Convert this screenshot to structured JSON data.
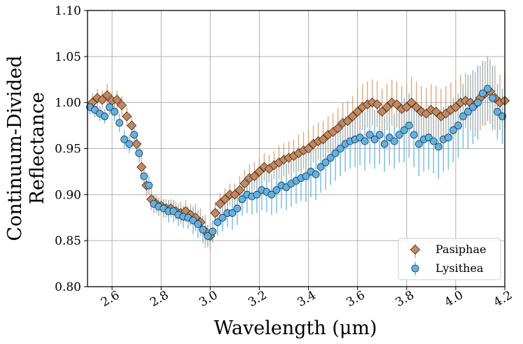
{
  "chart_data": {
    "type": "scatter",
    "title": "",
    "xlabel": "Wavelength (μm)",
    "ylabel": [
      "Continuum-Divided",
      "Reflectance"
    ],
    "xlim": [
      2.5,
      4.2
    ],
    "ylim": [
      0.8,
      1.1
    ],
    "x_ticks": [
      2.6,
      2.8,
      3.0,
      3.2,
      3.4,
      3.6,
      3.8,
      4.0,
      4.2
    ],
    "x_tick_labels": [
      "2.6",
      "2.8",
      "3.0",
      "3.2",
      "3.4",
      "3.6",
      "3.8",
      "4.0",
      "4.2"
    ],
    "y_ticks": [
      0.8,
      0.85,
      0.9,
      0.95,
      1.0,
      1.05,
      1.1
    ],
    "y_tick_labels": [
      "0.80",
      "0.85",
      "0.90",
      "0.95",
      "1.00",
      "1.05",
      "1.10"
    ],
    "grid": true,
    "legend_position": "bottom-right",
    "series": [
      {
        "name": "Pasiphae",
        "marker": "diamond",
        "color": "#c8875a",
        "edge_color": "#3a2a1e",
        "err_color": "#d9a06e",
        "x": [
          2.52,
          2.54,
          2.56,
          2.58,
          2.6,
          2.62,
          2.64,
          2.66,
          2.68,
          2.7,
          2.72,
          2.74,
          2.76,
          2.78,
          2.8,
          2.82,
          2.84,
          2.86,
          2.88,
          2.9,
          2.92,
          2.94,
          2.96,
          2.98,
          3.0,
          3.02,
          3.04,
          3.06,
          3.08,
          3.1,
          3.12,
          3.14,
          3.16,
          3.18,
          3.2,
          3.22,
          3.24,
          3.26,
          3.28,
          3.3,
          3.32,
          3.34,
          3.36,
          3.38,
          3.4,
          3.42,
          3.44,
          3.46,
          3.48,
          3.5,
          3.52,
          3.54,
          3.56,
          3.58,
          3.6,
          3.62,
          3.64,
          3.66,
          3.68,
          3.7,
          3.72,
          3.74,
          3.76,
          3.78,
          3.8,
          3.82,
          3.84,
          3.86,
          3.88,
          3.9,
          3.92,
          3.94,
          3.96,
          3.98,
          4.0,
          4.02,
          4.04,
          4.06,
          4.08,
          4.1,
          4.12,
          4.14,
          4.16,
          4.18,
          4.2
        ],
        "y": [
          1.0,
          1.005,
          1.003,
          1.008,
          1.002,
          1.003,
          0.997,
          0.985,
          0.975,
          0.955,
          0.93,
          0.91,
          0.895,
          0.89,
          0.888,
          0.885,
          0.885,
          0.882,
          0.88,
          0.882,
          0.878,
          0.875,
          0.87,
          0.86,
          0.855,
          0.88,
          0.89,
          0.895,
          0.9,
          0.9,
          0.905,
          0.912,
          0.918,
          0.92,
          0.925,
          0.93,
          0.928,
          0.932,
          0.935,
          0.938,
          0.94,
          0.942,
          0.945,
          0.948,
          0.95,
          0.955,
          0.958,
          0.96,
          0.965,
          0.968,
          0.972,
          0.978,
          0.98,
          0.985,
          0.99,
          0.995,
          0.998,
          1.0,
          0.998,
          0.99,
          0.995,
          1.0,
          0.998,
          0.993,
          0.995,
          1.0,
          0.995,
          0.99,
          0.988,
          0.992,
          0.99,
          0.985,
          0.988,
          0.992,
          0.995,
          1.0,
          1.002,
          1.0,
          0.998,
          1.005,
          1.01,
          1.012,
          1.005,
          1.0,
          1.002
        ],
        "err": [
          0.01,
          0.01,
          0.01,
          0.012,
          0.01,
          0.01,
          0.01,
          0.01,
          0.01,
          0.012,
          0.012,
          0.012,
          0.012,
          0.01,
          0.01,
          0.01,
          0.01,
          0.01,
          0.012,
          0.012,
          0.012,
          0.015,
          0.015,
          0.018,
          0.015,
          0.012,
          0.012,
          0.012,
          0.012,
          0.012,
          0.015,
          0.015,
          0.015,
          0.015,
          0.015,
          0.015,
          0.015,
          0.015,
          0.018,
          0.018,
          0.018,
          0.018,
          0.02,
          0.02,
          0.02,
          0.02,
          0.02,
          0.02,
          0.02,
          0.02,
          0.022,
          0.022,
          0.022,
          0.022,
          0.025,
          0.025,
          0.025,
          0.025,
          0.025,
          0.025,
          0.025,
          0.025,
          0.025,
          0.025,
          0.025,
          0.028,
          0.028,
          0.028,
          0.028,
          0.028,
          0.028,
          0.03,
          0.03,
          0.03,
          0.03,
          0.03,
          0.03,
          0.03,
          0.035,
          0.035,
          0.035,
          0.035,
          0.035,
          0.03,
          0.03
        ]
      },
      {
        "name": "Lysithea",
        "marker": "circle",
        "color": "#5eb3e6",
        "edge_color": "#1d3140",
        "err_color": "#5eb3e6",
        "x": [
          2.51,
          2.53,
          2.55,
          2.57,
          2.59,
          2.61,
          2.63,
          2.65,
          2.67,
          2.69,
          2.71,
          2.73,
          2.75,
          2.77,
          2.79,
          2.81,
          2.83,
          2.85,
          2.87,
          2.89,
          2.91,
          2.93,
          2.95,
          2.97,
          2.99,
          3.01,
          3.03,
          3.05,
          3.07,
          3.09,
          3.11,
          3.13,
          3.15,
          3.17,
          3.19,
          3.21,
          3.23,
          3.25,
          3.27,
          3.29,
          3.31,
          3.33,
          3.35,
          3.37,
          3.39,
          3.41,
          3.43,
          3.45,
          3.47,
          3.49,
          3.51,
          3.53,
          3.55,
          3.57,
          3.59,
          3.61,
          3.63,
          3.65,
          3.67,
          3.69,
          3.71,
          3.73,
          3.75,
          3.77,
          3.79,
          3.81,
          3.83,
          3.85,
          3.87,
          3.89,
          3.91,
          3.93,
          3.95,
          3.97,
          3.99,
          4.01,
          4.03,
          4.05,
          4.07,
          4.09,
          4.11,
          4.13,
          4.15,
          4.17,
          4.19
        ],
        "y": [
          0.995,
          0.992,
          0.988,
          0.985,
          0.995,
          0.99,
          0.978,
          0.96,
          0.955,
          0.965,
          0.945,
          0.92,
          0.91,
          0.89,
          0.887,
          0.885,
          0.882,
          0.882,
          0.878,
          0.876,
          0.875,
          0.872,
          0.868,
          0.862,
          0.855,
          0.86,
          0.87,
          0.875,
          0.88,
          0.88,
          0.885,
          0.895,
          0.9,
          0.898,
          0.9,
          0.905,
          0.903,
          0.9,
          0.905,
          0.91,
          0.908,
          0.912,
          0.915,
          0.918,
          0.92,
          0.925,
          0.922,
          0.93,
          0.935,
          0.94,
          0.945,
          0.95,
          0.955,
          0.958,
          0.96,
          0.962,
          0.958,
          0.965,
          0.96,
          0.965,
          0.955,
          0.962,
          0.958,
          0.965,
          0.97,
          0.975,
          0.965,
          0.955,
          0.96,
          0.962,
          0.958,
          0.952,
          0.96,
          0.962,
          0.97,
          0.975,
          0.985,
          0.99,
          0.995,
          1.0,
          1.01,
          1.015,
          1.005,
          0.99,
          0.985
        ],
        "err": [
          0.008,
          0.008,
          0.008,
          0.008,
          0.008,
          0.01,
          0.01,
          0.01,
          0.01,
          0.01,
          0.01,
          0.01,
          0.01,
          0.01,
          0.01,
          0.01,
          0.012,
          0.012,
          0.012,
          0.012,
          0.012,
          0.015,
          0.015,
          0.015,
          0.012,
          0.012,
          0.015,
          0.015,
          0.015,
          0.018,
          0.018,
          0.018,
          0.02,
          0.02,
          0.02,
          0.022,
          0.022,
          0.022,
          0.025,
          0.025,
          0.025,
          0.025,
          0.025,
          0.025,
          0.028,
          0.028,
          0.028,
          0.028,
          0.03,
          0.03,
          0.03,
          0.03,
          0.03,
          0.03,
          0.03,
          0.03,
          0.032,
          0.032,
          0.032,
          0.032,
          0.03,
          0.03,
          0.03,
          0.03,
          0.035,
          0.035,
          0.035,
          0.035,
          0.035,
          0.035,
          0.035,
          0.035,
          0.035,
          0.035,
          0.035,
          0.035,
          0.035,
          0.04,
          0.04,
          0.04,
          0.035,
          0.035,
          0.035,
          0.03,
          0.03
        ]
      }
    ]
  }
}
